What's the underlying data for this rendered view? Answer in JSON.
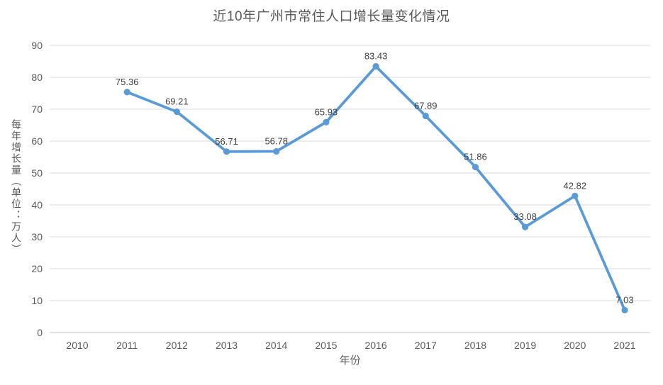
{
  "chart_data": {
    "type": "line",
    "title": "近10年广州市常住人口增长量变化情况",
    "xlabel": "年份",
    "ylabel": "每年增长量（单位：万人）",
    "categories": [
      "2010",
      "2011",
      "2012",
      "2013",
      "2014",
      "2015",
      "2016",
      "2017",
      "2018",
      "2019",
      "2020",
      "2021"
    ],
    "values": [
      null,
      75.36,
      69.21,
      56.71,
      56.78,
      65.93,
      83.43,
      67.89,
      51.86,
      33.08,
      42.82,
      7.03
    ],
    "data_labels": [
      "",
      "75.36",
      "69.21",
      "56.71",
      "56.78",
      "65.93",
      "83.43",
      "67.89",
      "51.86",
      "33.08",
      "42.82",
      "7.03"
    ],
    "ylim": [
      0,
      90
    ],
    "yticks": [
      0,
      10,
      20,
      30,
      40,
      50,
      60,
      70,
      80,
      90
    ],
    "grid": true,
    "legend": "none",
    "marker": "circle"
  },
  "colors": {
    "line": "#5B9BD5",
    "marker": "#5B9BD5",
    "grid": "#D9D9D9",
    "axis_line": "#C6C6C6",
    "tick_text": "#595959",
    "title_text": "#595959",
    "data_label_text": "#404040",
    "background": "#FFFFFF"
  }
}
